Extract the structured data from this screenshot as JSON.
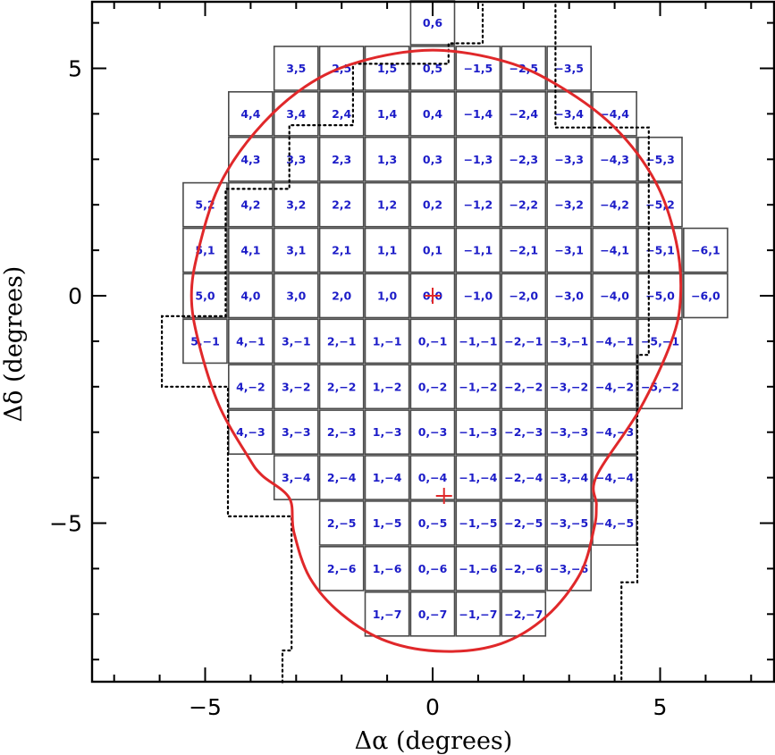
{
  "chart_data": {
    "type": "scatter",
    "title": "",
    "xlabel": "Δα (degrees)",
    "ylabel": "Δδ (degrees)",
    "xlim": [
      7.5,
      -7.5
    ],
    "ylim": [
      -8.5,
      6.4
    ],
    "x_ticks": [
      {
        "value": 5,
        "label": "−5"
      },
      {
        "value": 0,
        "label": "0"
      },
      {
        "value": -5,
        "label": "5"
      }
    ],
    "y_ticks": [
      {
        "value": 5,
        "label": "5"
      },
      {
        "value": 0,
        "label": "0"
      },
      {
        "value": -5,
        "label": "−5"
      }
    ],
    "tile_size_deg": 0.965,
    "tiles": [
      {
        "i": 0,
        "j": 6
      },
      {
        "i": 3,
        "j": 5
      },
      {
        "i": 2,
        "j": 5
      },
      {
        "i": 1,
        "j": 5
      },
      {
        "i": 0,
        "j": 5
      },
      {
        "i": -1,
        "j": 5
      },
      {
        "i": -2,
        "j": 5
      },
      {
        "i": -3,
        "j": 5
      },
      {
        "i": 4,
        "j": 4
      },
      {
        "i": 3,
        "j": 4
      },
      {
        "i": 2,
        "j": 4
      },
      {
        "i": 1,
        "j": 4
      },
      {
        "i": 0,
        "j": 4
      },
      {
        "i": -1,
        "j": 4
      },
      {
        "i": -2,
        "j": 4
      },
      {
        "i": -3,
        "j": 4
      },
      {
        "i": -4,
        "j": 4
      },
      {
        "i": 4,
        "j": 3
      },
      {
        "i": 3,
        "j": 3
      },
      {
        "i": 2,
        "j": 3
      },
      {
        "i": 1,
        "j": 3
      },
      {
        "i": 0,
        "j": 3
      },
      {
        "i": -1,
        "j": 3
      },
      {
        "i": -2,
        "j": 3
      },
      {
        "i": -3,
        "j": 3
      },
      {
        "i": -4,
        "j": 3
      },
      {
        "i": -5,
        "j": 3
      },
      {
        "i": 5,
        "j": 2
      },
      {
        "i": 4,
        "j": 2
      },
      {
        "i": 3,
        "j": 2
      },
      {
        "i": 2,
        "j": 2
      },
      {
        "i": 1,
        "j": 2
      },
      {
        "i": 0,
        "j": 2
      },
      {
        "i": -1,
        "j": 2
      },
      {
        "i": -2,
        "j": 2
      },
      {
        "i": -3,
        "j": 2
      },
      {
        "i": -4,
        "j": 2
      },
      {
        "i": -5,
        "j": 2
      },
      {
        "i": 5,
        "j": 1
      },
      {
        "i": 4,
        "j": 1
      },
      {
        "i": 3,
        "j": 1
      },
      {
        "i": 2,
        "j": 1
      },
      {
        "i": 1,
        "j": 1
      },
      {
        "i": 0,
        "j": 1
      },
      {
        "i": -1,
        "j": 1
      },
      {
        "i": -2,
        "j": 1
      },
      {
        "i": -3,
        "j": 1
      },
      {
        "i": -4,
        "j": 1
      },
      {
        "i": -5,
        "j": 1
      },
      {
        "i": -6,
        "j": 1
      },
      {
        "i": 5,
        "j": 0
      },
      {
        "i": 4,
        "j": 0
      },
      {
        "i": 3,
        "j": 0
      },
      {
        "i": 2,
        "j": 0
      },
      {
        "i": 1,
        "j": 0
      },
      {
        "i": 0,
        "j": 0
      },
      {
        "i": -1,
        "j": 0
      },
      {
        "i": -2,
        "j": 0
      },
      {
        "i": -3,
        "j": 0
      },
      {
        "i": -4,
        "j": 0
      },
      {
        "i": -5,
        "j": 0
      },
      {
        "i": -6,
        "j": 0
      },
      {
        "i": 5,
        "j": -1
      },
      {
        "i": 4,
        "j": -1
      },
      {
        "i": 3,
        "j": -1
      },
      {
        "i": 2,
        "j": -1
      },
      {
        "i": 1,
        "j": -1
      },
      {
        "i": 0,
        "j": -1
      },
      {
        "i": -1,
        "j": -1
      },
      {
        "i": -2,
        "j": -1
      },
      {
        "i": -3,
        "j": -1
      },
      {
        "i": -4,
        "j": -1
      },
      {
        "i": -5,
        "j": -1
      },
      {
        "i": 4,
        "j": -2
      },
      {
        "i": 3,
        "j": -2
      },
      {
        "i": 2,
        "j": -2
      },
      {
        "i": 1,
        "j": -2
      },
      {
        "i": 0,
        "j": -2
      },
      {
        "i": -1,
        "j": -2
      },
      {
        "i": -2,
        "j": -2
      },
      {
        "i": -3,
        "j": -2
      },
      {
        "i": -4,
        "j": -2
      },
      {
        "i": -5,
        "j": -2
      },
      {
        "i": 4,
        "j": -3
      },
      {
        "i": 3,
        "j": -3
      },
      {
        "i": 2,
        "j": -3
      },
      {
        "i": 1,
        "j": -3
      },
      {
        "i": 0,
        "j": -3
      },
      {
        "i": -1,
        "j": -3
      },
      {
        "i": -2,
        "j": -3
      },
      {
        "i": -3,
        "j": -3
      },
      {
        "i": -4,
        "j": -3
      },
      {
        "i": 3,
        "j": -4
      },
      {
        "i": 2,
        "j": -4
      },
      {
        "i": 1,
        "j": -4
      },
      {
        "i": 0,
        "j": -4
      },
      {
        "i": -1,
        "j": -4
      },
      {
        "i": -2,
        "j": -4
      },
      {
        "i": -3,
        "j": -4
      },
      {
        "i": -4,
        "j": -4
      },
      {
        "i": 2,
        "j": -5
      },
      {
        "i": 1,
        "j": -5
      },
      {
        "i": 0,
        "j": -5
      },
      {
        "i": -1,
        "j": -5
      },
      {
        "i": -2,
        "j": -5
      },
      {
        "i": -3,
        "j": -5
      },
      {
        "i": -4,
        "j": -5
      },
      {
        "i": 2,
        "j": -6
      },
      {
        "i": 1,
        "j": -6
      },
      {
        "i": 0,
        "j": -6
      },
      {
        "i": -1,
        "j": -6
      },
      {
        "i": -2,
        "j": -6
      },
      {
        "i": -3,
        "j": -6
      },
      {
        "i": 1,
        "j": -7
      },
      {
        "i": 0,
        "j": -7
      },
      {
        "i": -1,
        "j": -7
      },
      {
        "i": -2,
        "j": -7
      }
    ],
    "markers": [
      {
        "name": "center",
        "x": 0,
        "y": 0,
        "symbol": "+"
      },
      {
        "name": "secondary-center",
        "x": -0.25,
        "y": -4.4,
        "symbol": "+"
      }
    ],
    "red_boundary": [
      [
        -3.6,
        -3.97
      ],
      [
        -4.55,
        -2.5
      ],
      [
        -5.25,
        -1.0
      ],
      [
        -5.45,
        0.0
      ],
      [
        -5.35,
        1.2
      ],
      [
        -4.9,
        2.5
      ],
      [
        -4.0,
        3.7
      ],
      [
        -2.8,
        4.6
      ],
      [
        -1.6,
        5.15
      ],
      [
        0.0,
        5.4
      ],
      [
        1.6,
        5.15
      ],
      [
        2.8,
        4.6
      ],
      [
        3.9,
        3.6
      ],
      [
        4.7,
        2.4
      ],
      [
        5.15,
        1.0
      ],
      [
        5.3,
        0.0
      ],
      [
        5.15,
        -1.0
      ],
      [
        4.7,
        -2.4
      ],
      [
        4.05,
        -3.55
      ],
      [
        3.75,
        -3.95
      ],
      [
        3.15,
        -4.45
      ],
      [
        3.05,
        -5.2
      ],
      [
        2.7,
        -6.2
      ],
      [
        2.0,
        -7.0
      ],
      [
        1.0,
        -7.6
      ],
      [
        -0.25,
        -7.82
      ],
      [
        -1.5,
        -7.65
      ],
      [
        -2.5,
        -7.05
      ],
      [
        -3.25,
        -6.1
      ],
      [
        -3.55,
        -5.1
      ],
      [
        -3.6,
        -4.6
      ]
    ],
    "dotted_boundary": [
      [
        3.3,
        -8.5
      ],
      [
        3.3,
        -7.8
      ],
      [
        3.1,
        -7.8
      ],
      [
        3.1,
        -6.6
      ],
      [
        3.1,
        -4.85
      ],
      [
        4.5,
        -4.85
      ],
      [
        4.5,
        -2.0
      ],
      [
        5.95,
        -2.0
      ],
      [
        5.95,
        -0.45
      ],
      [
        4.55,
        -0.45
      ],
      [
        4.55,
        2.35
      ],
      [
        3.15,
        2.35
      ],
      [
        3.15,
        3.75
      ],
      [
        1.75,
        3.75
      ],
      [
        1.75,
        5.1
      ],
      [
        -0.35,
        5.1
      ],
      [
        -0.35,
        5.55
      ],
      [
        -1.1,
        5.55
      ],
      [
        -1.1,
        6.4
      ]
    ],
    "dotted_boundary_2": [
      [
        -2.7,
        6.4
      ],
      [
        -2.7,
        3.7
      ],
      [
        -4.75,
        3.7
      ],
      [
        -4.75,
        1.7
      ],
      [
        -4.75,
        -1.3
      ],
      [
        -4.5,
        -1.3
      ],
      [
        -4.5,
        -6.3
      ],
      [
        -4.15,
        -6.3
      ],
      [
        -4.15,
        -8.5
      ]
    ],
    "colors": {
      "tile_edge": "#4a4a4a",
      "label": "#1c1cc8",
      "boundary": "#e0282a",
      "marker": "#e0282a",
      "dotted": "#000000"
    }
  }
}
